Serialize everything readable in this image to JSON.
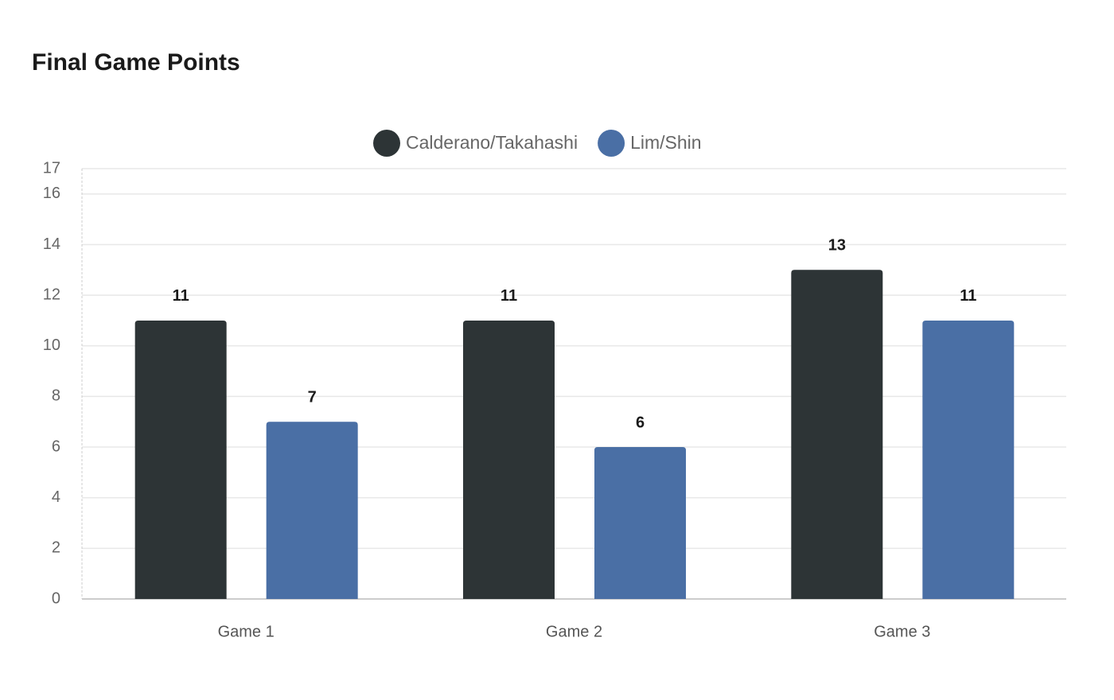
{
  "chart_data": {
    "type": "bar",
    "title": "Final Game Points",
    "categories": [
      "Game 1",
      "Game 2",
      "Game 3"
    ],
    "series": [
      {
        "name": "Calderano/Takahashi",
        "color": "#2d3436",
        "values": [
          11,
          11,
          13
        ]
      },
      {
        "name": "Lim/Shin",
        "color": "#4a6fa5",
        "values": [
          7,
          6,
          11
        ]
      }
    ],
    "ylim": [
      0,
      17
    ],
    "yticks": [
      0,
      2,
      4,
      6,
      8,
      10,
      12,
      14,
      16,
      17
    ],
    "grid": true,
    "legend": "top"
  }
}
